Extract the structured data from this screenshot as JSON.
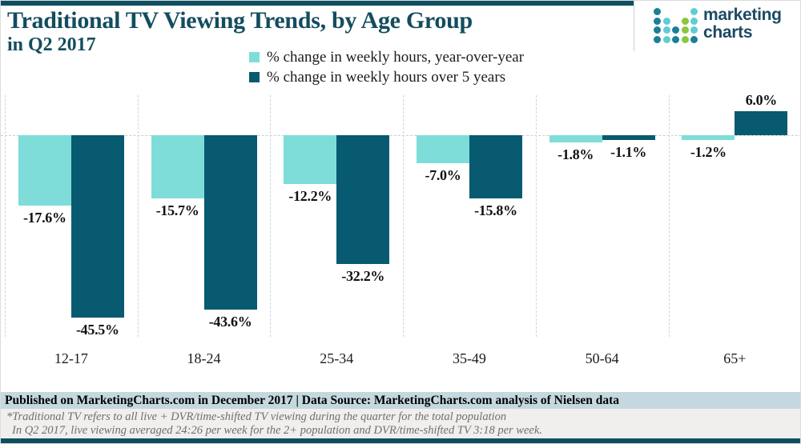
{
  "header": {
    "title_line1": "Traditional TV Viewing Trends, by Age Group",
    "title_line2": "in Q2 2017"
  },
  "logo": {
    "text_line1": "marketing",
    "text_line2": "charts",
    "dot_colors": {
      "dark": "#1a7f97",
      "light": "#5fcdd4",
      "green": "#8cc63f"
    },
    "dot_grid": [
      [
        "dark",
        "",
        "",
        "",
        "light"
      ],
      [
        "dark",
        "light",
        "",
        "green",
        "light"
      ],
      [
        "dark",
        "light",
        "dark",
        "green",
        "light"
      ],
      [
        "dark",
        "light",
        "dark",
        "green",
        "dark"
      ]
    ]
  },
  "legend": {
    "items": [
      {
        "label": "% change in weekly hours, year-over-year",
        "color": "#7eddd8"
      },
      {
        "label": "% change in weekly hours over 5 years",
        "color": "#075a70"
      }
    ]
  },
  "chart_data": {
    "type": "bar",
    "title": "Traditional TV Viewing Trends, by Age Group in Q2 2017",
    "unit": "%",
    "categories": [
      "12-17",
      "18-24",
      "25-34",
      "35-49",
      "50-64",
      "65+"
    ],
    "series": [
      {
        "key": "yoy",
        "name": "% change in weekly hours, year-over-year",
        "color": "#7eddd8",
        "values": [
          -17.6,
          -15.7,
          -12.2,
          -7.0,
          -1.8,
          -1.2
        ],
        "labels": [
          "-17.6%",
          "-15.7%",
          "-12.2%",
          "-7.0%",
          "-1.8%",
          "-1.2%"
        ]
      },
      {
        "key": "5yr",
        "name": "% change in weekly hours over 5 years",
        "color": "#075a70",
        "values": [
          -45.5,
          -43.6,
          -32.2,
          -15.8,
          -1.1,
          6.0
        ],
        "labels": [
          "-45.5%",
          "-43.6%",
          "-32.2%",
          "-15.8%",
          "-1.1%",
          "6.0%"
        ]
      }
    ],
    "ylim": [
      -50,
      10
    ],
    "zero_line": true,
    "legend_position": "top-center",
    "grid": "vertical dashed group separators + dashed zero line"
  },
  "footer": {
    "published": "Published on MarketingCharts.com in December 2017 | Data Source: MarketingCharts.com analysis of Nielsen data",
    "footnote_line1": "*Traditional TV refers to all live + DVR/time-shifted TV viewing during the quarter for the total population",
    "footnote_line2": "In Q2 2017, live viewing averaged 24:26 per week for the 2+ population and DVR/time-shifted TV 3:18 per week."
  },
  "colors": {
    "accent_bar": "#0d4f61",
    "title": "#134d5e",
    "series_yoy": "#7eddd8",
    "series_5yr": "#075a70",
    "published_band_bg": "#c4d8e0",
    "footnote_band_bg": "#f0efed",
    "gridline": "#ccd5dc",
    "logo_text": "#1c4a63"
  }
}
